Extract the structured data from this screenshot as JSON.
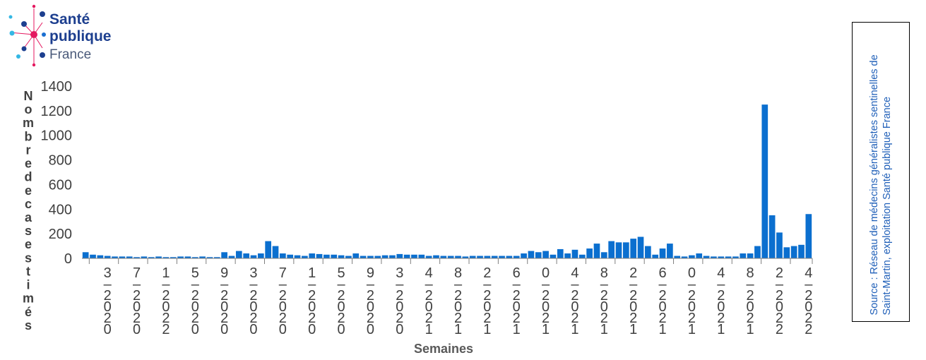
{
  "logo": {
    "line1": "Santé",
    "line2": "publique",
    "line3": "France",
    "colors": {
      "navy": "#1d3f8f",
      "pink": "#e4175f",
      "cyan": "#34b7e4",
      "blue": "#1b6fd1"
    }
  },
  "source": "Source : Réseau de médecins généralistes sentinelles de Saint-Martin, exploitation Santé publique France",
  "chart_data": {
    "type": "bar",
    "title": "",
    "xlabel": "Semaines",
    "ylabel": "Nombre de cas estimés",
    "ylim": [
      0,
      1400
    ],
    "yticks": [
      0,
      200,
      400,
      600,
      800,
      1000,
      1200,
      1400
    ],
    "bar_color": "#0b6fcf",
    "grid": false,
    "x_tick_labels": [
      "3-2020",
      "7-2020",
      "1-2022",
      "5-2020",
      "9-2020",
      "3-2020",
      "7-2020",
      "1-2020",
      "5-2020",
      "9-2020",
      "3-2020",
      "4-2021",
      "8-2021",
      "2-2021",
      "6-2021",
      "0-2021",
      "4-2021",
      "8-2021",
      "2-2021",
      "6-2021",
      "0-2021",
      "4-2021",
      "8-2021",
      "2-2022",
      "4-2022"
    ],
    "x_tick_positions": [
      3,
      7,
      11,
      15,
      19,
      23,
      27,
      31,
      35,
      39,
      43,
      47,
      51,
      55,
      59,
      63,
      67,
      71,
      75,
      79,
      83,
      87,
      91,
      95,
      99
    ],
    "values": [
      50,
      30,
      25,
      20,
      15,
      15,
      15,
      10,
      15,
      10,
      15,
      10,
      10,
      15,
      15,
      10,
      15,
      10,
      10,
      50,
      20,
      60,
      40,
      25,
      40,
      140,
      100,
      40,
      30,
      25,
      20,
      40,
      35,
      30,
      30,
      25,
      20,
      40,
      20,
      20,
      20,
      25,
      25,
      35,
      30,
      30,
      30,
      20,
      25,
      20,
      20,
      20,
      15,
      20,
      20,
      20,
      20,
      20,
      20,
      20,
      40,
      60,
      50,
      60,
      30,
      75,
      40,
      70,
      30,
      80,
      120,
      50,
      140,
      130,
      130,
      160,
      175,
      100,
      30,
      80,
      120,
      20,
      15,
      25,
      40,
      20,
      15,
      15,
      15,
      15,
      40,
      40,
      100,
      1250,
      350,
      210,
      90,
      100,
      110,
      360
    ]
  }
}
